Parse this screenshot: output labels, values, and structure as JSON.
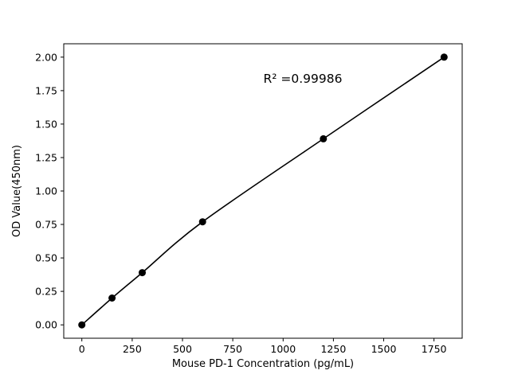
{
  "chart_data": {
    "type": "scatter",
    "title": "",
    "xlabel": "Mouse PD-1 Concentration (pg/mL)",
    "ylabel": "OD Value(450nm)",
    "annotation": "R² =0.99986",
    "x": [
      0,
      150,
      300,
      600,
      1200,
      1800
    ],
    "y": [
      0.0,
      0.2,
      0.39,
      0.77,
      1.39,
      2.0
    ],
    "xticks": [
      "0",
      "250",
      "500",
      "750",
      "1000",
      "1250",
      "1500",
      "1750"
    ],
    "yticks": [
      "0.00",
      "0.25",
      "0.50",
      "0.75",
      "1.00",
      "1.25",
      "1.50",
      "1.75",
      "2.00"
    ],
    "xlim": [
      -90,
      1890
    ],
    "ylim": [
      -0.1,
      2.1
    ],
    "grid": false,
    "legend": "none",
    "marker_color": "#000000",
    "line_color": "#000000",
    "frame_color": "#000000",
    "background": "#ffffff"
  }
}
